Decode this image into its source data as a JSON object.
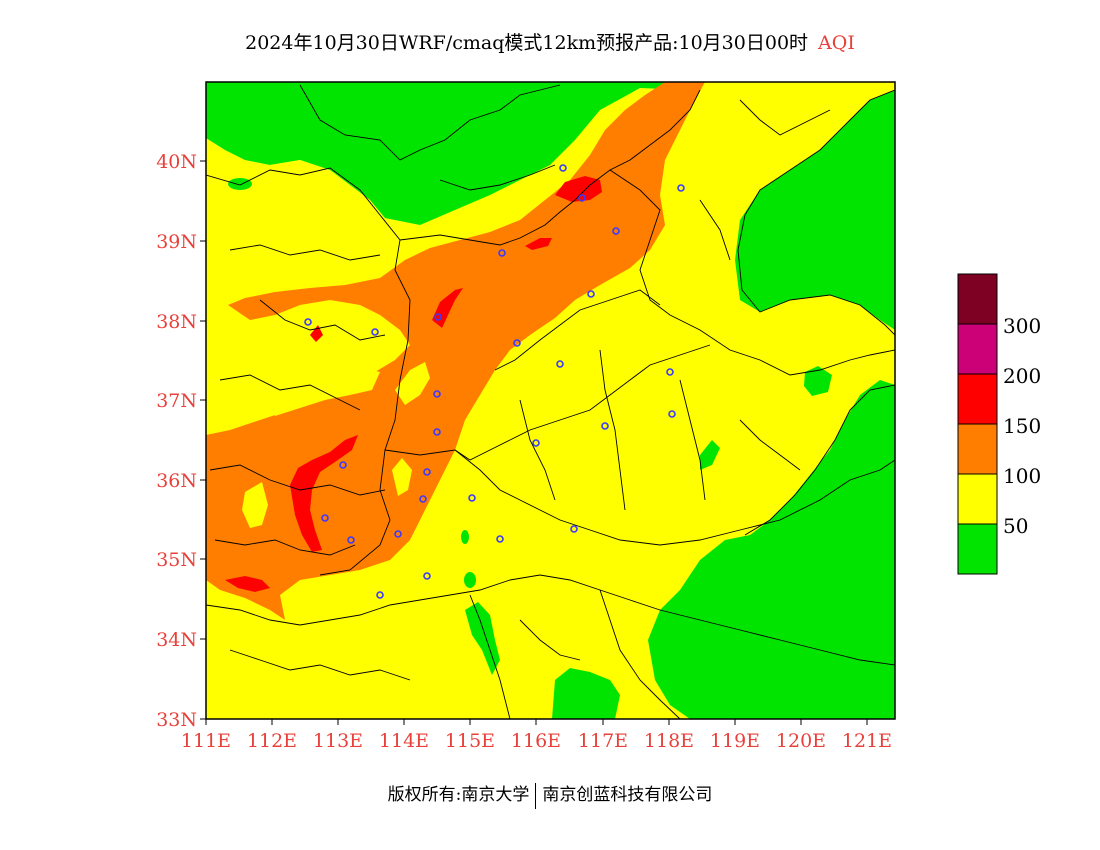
{
  "header": {
    "title": "2024年10月30日WRF/cmaq模式12km预报产品:10月30日00时",
    "product_tag": "AQI"
  },
  "map": {
    "latitude_labels": [
      "40N",
      "39N",
      "38N",
      "37N",
      "36N",
      "35N",
      "34N",
      "33N"
    ],
    "longitude_labels": [
      "111E",
      "112E",
      "113E",
      "114E",
      "115E",
      "116E",
      "117E",
      "118E",
      "119E",
      "120E",
      "121E"
    ],
    "extent": {
      "lon": [
        111,
        121.5
      ],
      "lat": [
        33,
        41
      ]
    },
    "colors": {
      "good": "#00e400",
      "moderate": "#ffff00",
      "usg": "#ff7e00",
      "unhealthy": "#ff0000",
      "very_unhealthy": "#cc0077",
      "hazardous": "#7e0023",
      "boundary": "#000000",
      "city_marker": "#3a3aff"
    }
  },
  "legend": {
    "ticks": [
      "300",
      "200",
      "150",
      "100",
      "50"
    ],
    "bins": [
      {
        "color": "#7e0023"
      },
      {
        "color": "#cc0077"
      },
      {
        "color": "#ff0000"
      },
      {
        "color": "#ff7e00"
      },
      {
        "color": "#ffff00"
      },
      {
        "color": "#00e400"
      }
    ]
  },
  "footer": {
    "copyright": "版权所有:南京大学",
    "company": "南京创蓝科技有限公司"
  }
}
